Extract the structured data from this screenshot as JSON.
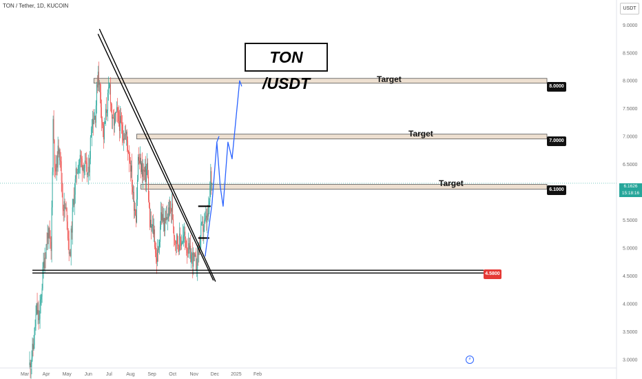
{
  "header": {
    "symbol_title": "TON / Tether, 1D, KUCOIN",
    "currency": "USDT",
    "headline": "TON /USDT"
  },
  "colors": {
    "up_candle": "#26a69a",
    "down_candle": "#ef5350",
    "projection": "#2962ff",
    "target_zone_fill": "#e8d7c4",
    "support_tag": "#e53935",
    "last_price_tag": "#26a69a"
  },
  "chart_data": {
    "type": "candlestick",
    "instrument": "TON/USDT",
    "interval": "1D",
    "exchange": "KUCOIN",
    "ylim": [
      2.85,
      9.35
    ],
    "y_ticks": [
      "3.0000",
      "3.5000",
      "4.0000",
      "4.5000",
      "5.0000",
      "5.5000",
      "6.0000",
      "6.5000",
      "7.0000",
      "7.5000",
      "8.0000",
      "8.5000",
      "9.0000"
    ],
    "x_ticks": [
      "Mar",
      "Apr",
      "May",
      "Jun",
      "Jul",
      "Aug",
      "Sep",
      "Oct",
      "Nov",
      "Dec",
      "2025",
      "Feb"
    ],
    "grid": false,
    "price_path": [
      [
        "2024-03-08",
        2.9
      ],
      [
        "2024-03-13",
        3.2
      ],
      [
        "2024-03-18",
        3.9
      ],
      [
        "2024-03-22",
        3.7
      ],
      [
        "2024-03-28",
        4.7
      ],
      [
        "2024-04-04",
        5.3
      ],
      [
        "2024-04-08",
        4.9
      ],
      [
        "2024-04-11",
        7.3
      ],
      [
        "2024-04-14",
        6.3
      ],
      [
        "2024-04-20",
        6.9
      ],
      [
        "2024-04-25",
        5.8
      ],
      [
        "2024-05-01",
        5.6
      ],
      [
        "2024-05-05",
        4.8
      ],
      [
        "2024-05-10",
        5.8
      ],
      [
        "2024-05-15",
        6.4
      ],
      [
        "2024-05-20",
        6.6
      ],
      [
        "2024-05-25",
        6.5
      ],
      [
        "2024-06-01",
        6.3
      ],
      [
        "2024-06-06",
        7.3
      ],
      [
        "2024-06-11",
        7.4
      ],
      [
        "2024-06-15",
        8.2
      ],
      [
        "2024-06-19",
        7.6
      ],
      [
        "2024-06-23",
        7.0
      ],
      [
        "2024-06-27",
        7.5
      ],
      [
        "2024-07-02",
        7.9
      ],
      [
        "2024-07-06",
        7.2
      ],
      [
        "2024-07-12",
        7.4
      ],
      [
        "2024-07-20",
        7.1
      ],
      [
        "2024-07-26",
        7.0
      ],
      [
        "2024-08-01",
        6.5
      ],
      [
        "2024-08-05",
        5.9
      ],
      [
        "2024-08-09",
        5.6
      ],
      [
        "2024-08-12",
        6.6
      ],
      [
        "2024-08-18",
        6.4
      ],
      [
        "2024-08-23",
        6.3
      ],
      [
        "2024-08-25",
        6.5
      ],
      [
        "2024-08-29",
        5.4
      ],
      [
        "2024-09-04",
        5.3
      ],
      [
        "2024-09-07",
        4.8
      ],
      [
        "2024-09-10",
        4.9
      ],
      [
        "2024-09-14",
        5.6
      ],
      [
        "2024-09-20",
        5.4
      ],
      [
        "2024-09-26",
        5.7
      ],
      [
        "2024-09-30",
        5.7
      ],
      [
        "2024-10-04",
        5.2
      ],
      [
        "2024-10-10",
        5.1
      ],
      [
        "2024-10-18",
        5.2
      ],
      [
        "2024-10-25",
        4.9
      ],
      [
        "2024-10-31",
        4.8
      ],
      [
        "2024-11-04",
        4.7
      ],
      [
        "2024-11-08",
        5.0
      ],
      [
        "2024-11-11",
        5.3
      ],
      [
        "2024-11-15",
        5.4
      ],
      [
        "2024-11-19",
        5.5
      ],
      [
        "2024-11-22",
        5.6
      ],
      [
        "2024-11-25",
        6.3
      ],
      [
        "2024-11-27",
        6.16
      ]
    ],
    "last_price": "6.1626",
    "countdown": "15:18:16",
    "support": {
      "price": 4.58,
      "label": "4.5800"
    },
    "targets": [
      {
        "label": "Target",
        "price": 8.0,
        "tag": "8.0000"
      },
      {
        "label": "Target",
        "price": 7.0,
        "tag": "7.0000"
      },
      {
        "label": "Target",
        "price": 6.1,
        "tag": "6.1000"
      }
    ],
    "projection_path": [
      [
        "2024-11-27",
        5.8
      ],
      [
        "2024-12-04",
        6.9
      ],
      [
        "2024-12-07",
        7.0
      ],
      [
        "2024-12-04",
        6.9
      ],
      [
        "2024-12-09",
        6.1
      ],
      [
        "2024-12-13",
        5.75
      ],
      [
        "2024-12-20",
        6.9
      ],
      [
        "2024-12-26",
        6.6
      ],
      [
        "2025-01-06",
        8.0
      ],
      [
        "2025-01-09",
        7.9
      ]
    ]
  }
}
